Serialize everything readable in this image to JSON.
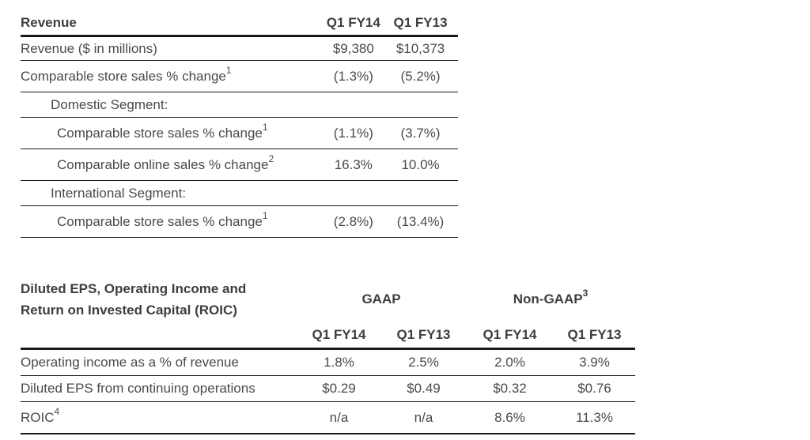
{
  "revenue_table": {
    "header": {
      "title": "Revenue",
      "col1": "Q1 FY14",
      "col2": "Q1 FY13"
    },
    "rows": [
      {
        "label": "Revenue ($ in millions)",
        "sup": "",
        "q1fy14": "$9,380",
        "q1fy13": "$10,373"
      },
      {
        "label": "Comparable store sales % change",
        "sup": "1",
        "q1fy14": "(1.3%)",
        "q1fy13": "(5.2%)"
      },
      {
        "label": "Domestic Segment:",
        "sup": "",
        "q1fy14": "",
        "q1fy13": ""
      },
      {
        "label": "Comparable store sales % change",
        "sup": "1",
        "q1fy14": "(1.1%)",
        "q1fy13": "(3.7%)"
      },
      {
        "label": "Comparable online sales % change",
        "sup": "2",
        "q1fy14": "16.3%",
        "q1fy13": "10.0%"
      },
      {
        "label": "International Segment:",
        "sup": "",
        "q1fy14": "",
        "q1fy13": ""
      },
      {
        "label": "Comparable store sales % change",
        "sup": "1",
        "q1fy14": "(2.8%)",
        "q1fy13": "(13.4%)"
      }
    ]
  },
  "eps_table": {
    "title_line1": "Diluted EPS, Operating Income and",
    "title_line2": "Return on Invested Capital (ROIC)",
    "group_gaap": "GAAP",
    "group_nongaap": "Non-GAAP",
    "group_nongaap_sup": "3",
    "columns": [
      "Q1 FY14",
      "Q1 FY13",
      "Q1 FY14",
      "Q1 FY13"
    ],
    "rows": [
      {
        "label": "Operating income as a % of revenue",
        "sup": "",
        "values": [
          "1.8%",
          "2.5%",
          "2.0%",
          "3.9%"
        ]
      },
      {
        "label": "Diluted EPS from continuing operations",
        "sup": "",
        "values": [
          "$0.29",
          "$0.49",
          "$0.32",
          "$0.76"
        ]
      },
      {
        "label": "ROIC",
        "sup": "4",
        "values": [
          "n/a",
          "n/a",
          "8.6%",
          "11.3%"
        ]
      }
    ]
  }
}
